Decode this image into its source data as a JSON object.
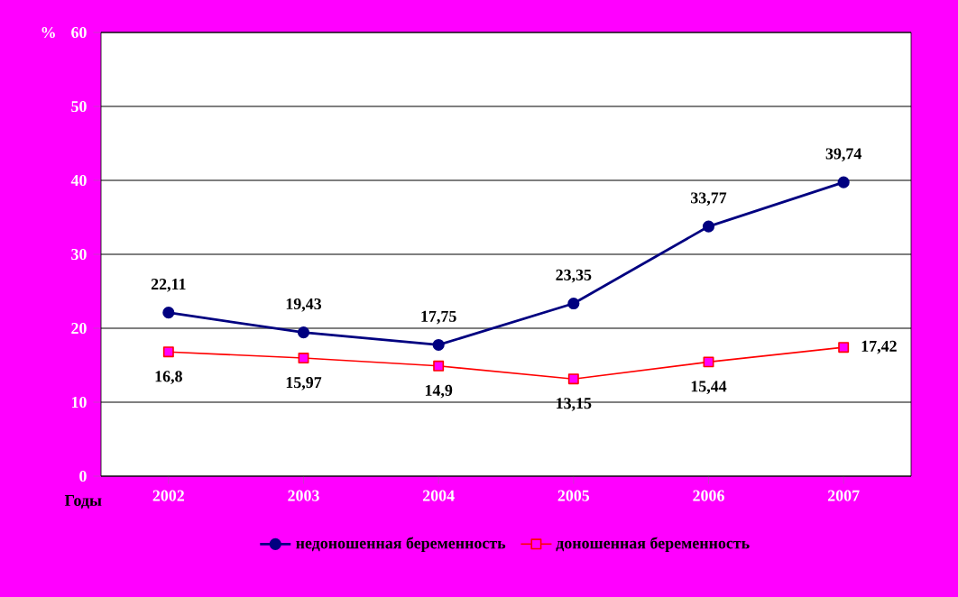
{
  "chart_data": {
    "type": "line",
    "xlabel": "Годы",
    "ylabel": "%",
    "categories": [
      "2002",
      "2003",
      "2004",
      "2005",
      "2006",
      "2007"
    ],
    "series": [
      {
        "name": "недоношенная беременность",
        "color": "#000080",
        "marker": "circle",
        "values": [
          22.11,
          19.43,
          17.75,
          23.35,
          33.77,
          39.74
        ],
        "value_labels": [
          "22,11",
          "19,43",
          "17,75",
          "23,35",
          "33,77",
          "39,74"
        ]
      },
      {
        "name": "доношенная беременность",
        "color": "#ff0000",
        "marker": "square",
        "values": [
          16.8,
          15.97,
          14.9,
          13.15,
          15.44,
          17.42
        ],
        "value_labels": [
          "16,8",
          "15,97",
          "14,9",
          "13,15",
          "15,44",
          "17,42"
        ]
      }
    ],
    "ylim": [
      0,
      60
    ],
    "yticks": [
      0,
      10,
      20,
      30,
      40,
      50,
      60
    ],
    "grid": "y",
    "legend": "bottom"
  }
}
